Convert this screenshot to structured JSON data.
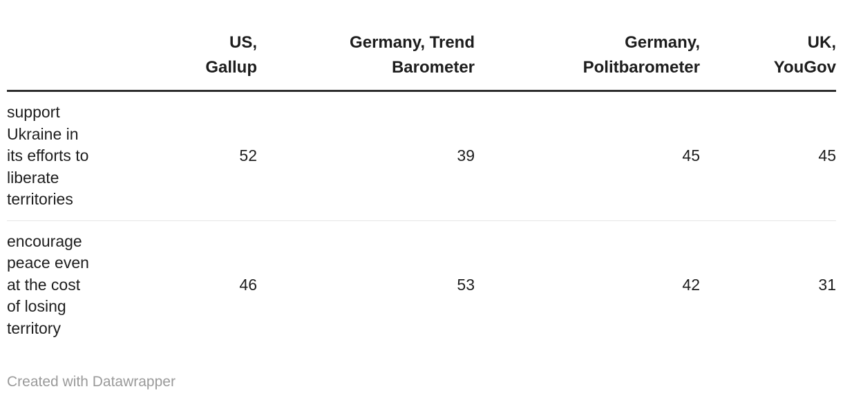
{
  "chart_data": {
    "type": "table",
    "columns": [
      "US, Gallup",
      "Germany, Trend Barometer",
      "Germany, Politbarometer",
      "UK, YouGov"
    ],
    "rows": [
      {
        "label": "support Ukraine in its efforts to liberate territories",
        "values": [
          52,
          39,
          45,
          45
        ]
      },
      {
        "label": "encourage peace even at the cost of losing territory",
        "values": [
          46,
          53,
          42,
          31
        ]
      }
    ],
    "title": "",
    "legend_position": "none",
    "grid": "header-rule-and-row-divider",
    "attribution": "Created with Datawrapper"
  },
  "header": {
    "col0": "",
    "col1": "US,\nGallup",
    "col2": "Germany, Trend\nBarometer",
    "col3": "Germany,\nPolitbarometer",
    "col4": "UK,\nYouGov"
  },
  "rows": {
    "r1": {
      "label": "support\nUkraine in\nits efforts to\nliberate\nterritories",
      "v1": "52",
      "v2": "39",
      "v3": "45",
      "v4": "45"
    },
    "r2": {
      "label": "encourage\npeace even\nat the cost\nof losing\nterritory",
      "v1": "46",
      "v2": "53",
      "v3": "42",
      "v4": "31"
    }
  },
  "footer": {
    "attribution": "Created with Datawrapper"
  },
  "colors": {
    "text": "#1d1d1d",
    "header_rule": "#2e2e2e",
    "row_divider": "#e6e6e6",
    "attribution_text": "#9a9a9a",
    "background": "#ffffff"
  }
}
